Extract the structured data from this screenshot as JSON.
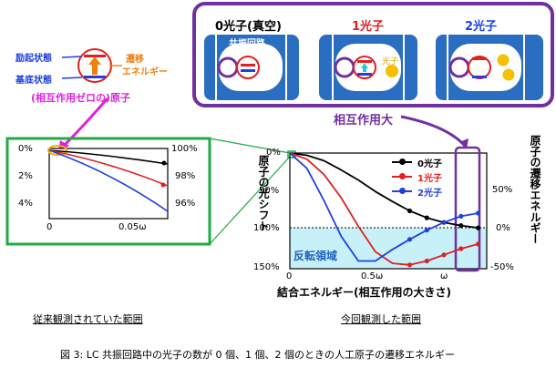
{
  "top_panel": {
    "frame_color": "#7030a0",
    "labels": [
      {
        "text": "0光子(真空)",
        "color": "#000000"
      },
      {
        "text": "1光子",
        "color": "#e02020"
      },
      {
        "text": "2光子",
        "color": "#2040e0"
      }
    ],
    "resonator_label": "共振回路",
    "photon_label": "光子",
    "interaction_label": "相互作用大"
  },
  "atom_legend": {
    "excited": "励起状態",
    "ground": "基底状態",
    "transition_line1": "遷移",
    "transition_line2": "エネルギー",
    "caption": "(相互作用ゼロの)原子"
  },
  "left_chart": {
    "frame_color": "#22aa44",
    "y_left_ticks": [
      "0%",
      "2%",
      "4%"
    ],
    "y_right_ticks": [
      "100%",
      "98%",
      "96%"
    ],
    "x_ticks": [
      "0",
      "0.05ω"
    ],
    "caption": "従来観測されていた範囲"
  },
  "right_chart": {
    "ylabel_left": "原子の光シフト",
    "ylabel_right": "原子の遷移エネルギー",
    "xlabel": "結合エネルギー(相互作用の大きさ)",
    "y_left_ticks": [
      "0%",
      "50%",
      "100%",
      "150%"
    ],
    "y_right_ticks": [
      "50%",
      "0%",
      "-50%"
    ],
    "x_ticks": [
      "0",
      "0.5ω",
      "ω"
    ],
    "legend": [
      {
        "label": "0光子",
        "color": "#000000"
      },
      {
        "label": "1光子",
        "color": "#e02020"
      },
      {
        "label": "2光子",
        "color": "#2040e0"
      }
    ],
    "region_label": "反転領域",
    "caption": "今回観測した範囲"
  },
  "figure_caption": "図 3: LC 共振回路中の光子の数が 0 個、1 個、2 個のときの人工原子の遷移エネルギー",
  "chart_data": {
    "type": "line",
    "x_range": [
      0,
      1.15
    ],
    "y_left_range": [
      0,
      150
    ],
    "series": [
      {
        "name": "0光子",
        "color": "#000000",
        "x": [
          0,
          0.1,
          0.2,
          0.3,
          0.4,
          0.5,
          0.6,
          0.7,
          0.8,
          0.9,
          1.0,
          1.1
        ],
        "y": [
          0,
          3,
          10,
          22,
          35,
          50,
          63,
          75,
          84,
          90,
          94,
          97
        ]
      },
      {
        "name": "1光子",
        "color": "#e02020",
        "x": [
          0,
          0.1,
          0.2,
          0.3,
          0.4,
          0.5,
          0.6,
          0.7,
          0.8,
          0.9,
          1.0,
          1.1
        ],
        "y": [
          0,
          8,
          28,
          58,
          95,
          128,
          143,
          145,
          140,
          132,
          124,
          118
        ]
      },
      {
        "name": "2光子",
        "color": "#2040e0",
        "x": [
          0,
          0.1,
          0.2,
          0.3,
          0.4,
          0.5,
          0.6,
          0.7,
          0.8,
          0.9,
          1.0,
          1.1
        ],
        "y": [
          0,
          20,
          62,
          108,
          140,
          140,
          125,
          112,
          100,
          90,
          82,
          78
        ]
      }
    ]
  }
}
